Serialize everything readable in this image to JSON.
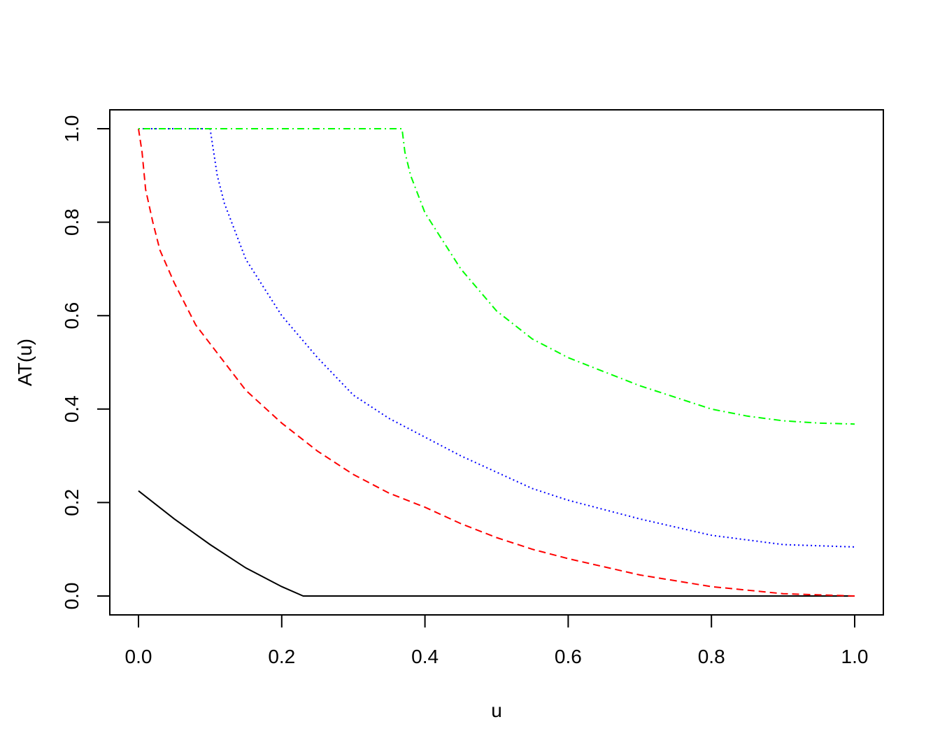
{
  "chart_data": {
    "type": "line",
    "title": "",
    "xlabel": "u",
    "ylabel": "AT(u)",
    "xlim": [
      0,
      1
    ],
    "ylim": [
      0,
      1
    ],
    "x_ticks": [
      "0.0",
      "0.2",
      "0.4",
      "0.6",
      "0.8",
      "1.0"
    ],
    "y_ticks": [
      "0.0",
      "0.2",
      "0.4",
      "0.6",
      "0.8",
      "1.0"
    ],
    "grid": false,
    "legend": "none",
    "series": [
      {
        "color": "#000000",
        "dash": "solid",
        "x": [
          0.0,
          0.05,
          0.1,
          0.15,
          0.2,
          0.23,
          0.3,
          0.4,
          0.5,
          0.6,
          0.7,
          0.8,
          0.9,
          1.0
        ],
        "y": [
          0.225,
          0.165,
          0.11,
          0.06,
          0.02,
          0.0,
          0.0,
          0.0,
          0.0,
          0.0,
          0.0,
          0.0,
          0.0,
          0.0
        ]
      },
      {
        "color": "#ff0000",
        "dash": "dashed",
        "x": [
          0.0,
          0.005,
          0.01,
          0.02,
          0.03,
          0.05,
          0.08,
          0.1,
          0.15,
          0.2,
          0.25,
          0.3,
          0.35,
          0.4,
          0.45,
          0.5,
          0.55,
          0.6,
          0.7,
          0.8,
          0.9,
          1.0
        ],
        "y": [
          1.0,
          0.95,
          0.87,
          0.8,
          0.74,
          0.67,
          0.58,
          0.54,
          0.44,
          0.37,
          0.31,
          0.26,
          0.22,
          0.19,
          0.155,
          0.125,
          0.1,
          0.08,
          0.045,
          0.02,
          0.005,
          0.0
        ]
      },
      {
        "color": "#0000ff",
        "dash": "dotted",
        "x": [
          0.0,
          0.1,
          0.105,
          0.11,
          0.12,
          0.15,
          0.2,
          0.25,
          0.3,
          0.35,
          0.4,
          0.45,
          0.5,
          0.55,
          0.6,
          0.7,
          0.8,
          0.9,
          1.0
        ],
        "y": [
          1.0,
          1.0,
          0.95,
          0.9,
          0.84,
          0.72,
          0.6,
          0.51,
          0.43,
          0.38,
          0.34,
          0.3,
          0.265,
          0.23,
          0.205,
          0.165,
          0.13,
          0.11,
          0.105
        ]
      },
      {
        "color": "#00ff00",
        "dash": "dotdash",
        "x": [
          0.0,
          0.368,
          0.372,
          0.38,
          0.4,
          0.45,
          0.5,
          0.55,
          0.6,
          0.65,
          0.7,
          0.75,
          0.8,
          0.85,
          0.9,
          0.95,
          1.0
        ],
        "y": [
          1.0,
          1.0,
          0.95,
          0.9,
          0.82,
          0.7,
          0.61,
          0.55,
          0.51,
          0.48,
          0.45,
          0.425,
          0.4,
          0.385,
          0.375,
          0.37,
          0.368
        ]
      }
    ]
  }
}
